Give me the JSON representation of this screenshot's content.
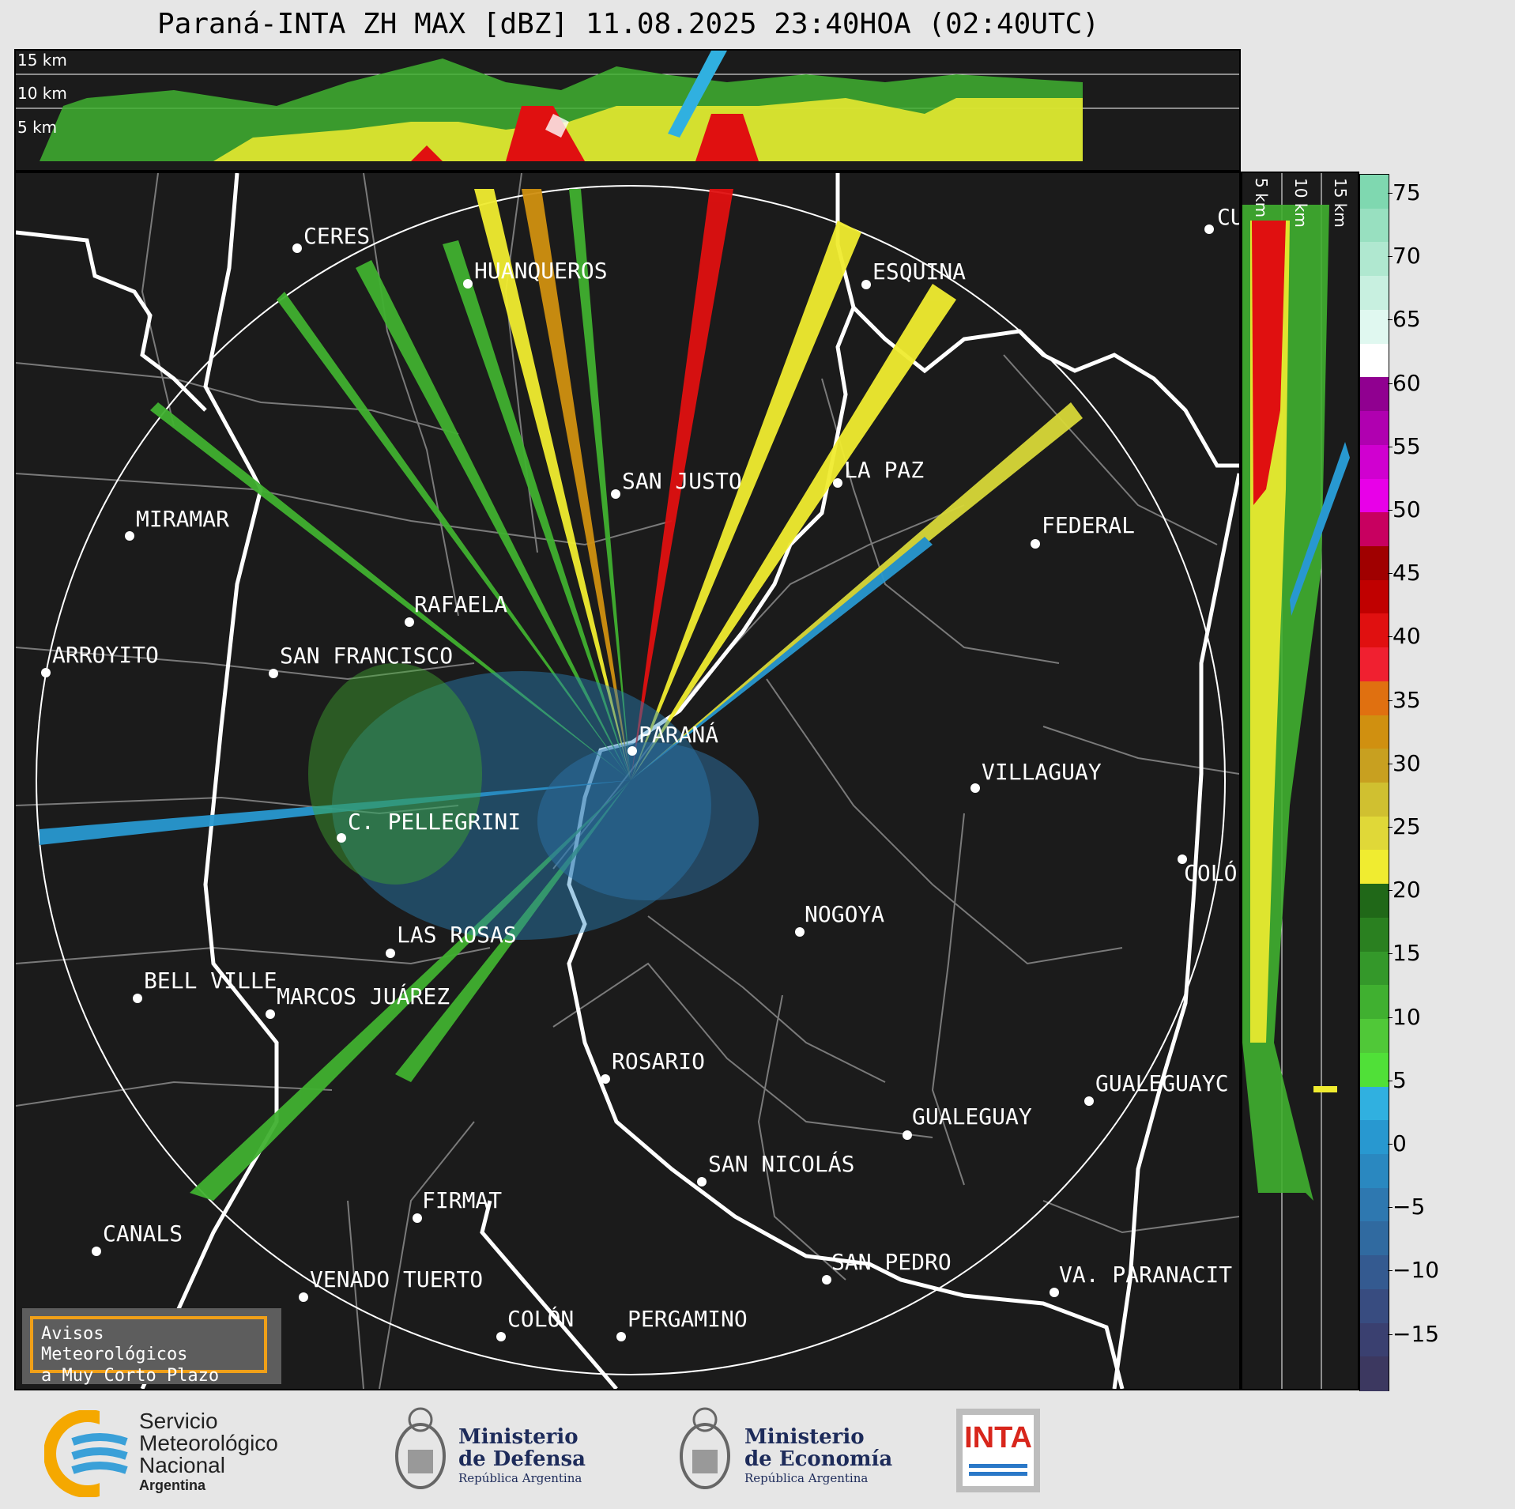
{
  "title": "Paraná-INTA ZH MAX [dBZ] 11.08.2025 23:40HOA (02:40UTC)",
  "top_panel": {
    "height_labels": [
      "15 km",
      "10 km",
      "5 km"
    ]
  },
  "side_panel": {
    "height_labels": [
      "5 km",
      "10 km",
      "15 km"
    ]
  },
  "colorbar": {
    "unit": "dBZ",
    "ticks": [
      "75",
      "70",
      "65",
      "60",
      "55",
      "50",
      "45",
      "40",
      "35",
      "30",
      "25",
      "20",
      "15",
      "10",
      "5",
      "0",
      "−5",
      "−10",
      "−15"
    ],
    "colors": [
      "#7fd8b0",
      "#98e0c0",
      "#b0e8d0",
      "#c8f0e0",
      "#e0f8f0",
      "#ffffff",
      "#900090",
      "#b000b0",
      "#d000d0",
      "#e800e8",
      "#c80060",
      "#a00000",
      "#c00000",
      "#e01010",
      "#f02030",
      "#e07010",
      "#d09010",
      "#c8a020",
      "#d0c030",
      "#e0d838",
      "#f0ec30",
      "#206818",
      "#2a8020",
      "#34982a",
      "#40b030",
      "#50c838",
      "#50e038",
      "#30b0e0",
      "#2898d0",
      "#2a88c0",
      "#2e78b0",
      "#306aa0",
      "#345a90",
      "#384c80",
      "#3a4070",
      "#3c3860"
    ]
  },
  "cities": [
    {
      "name": "CERES"
    },
    {
      "name": "HUANQUEROS"
    },
    {
      "name": "ESQUINA"
    },
    {
      "name": "CU"
    },
    {
      "name": "SAN JUSTO"
    },
    {
      "name": "LA PAZ"
    },
    {
      "name": "MIRAMAR"
    },
    {
      "name": "FEDERAL"
    },
    {
      "name": "RAFAELA"
    },
    {
      "name": "ARROYITO"
    },
    {
      "name": "SAN FRANCISCO"
    },
    {
      "name": "PARANÁ"
    },
    {
      "name": "VILLAGUAY"
    },
    {
      "name": "C. PELLEGRINI"
    },
    {
      "name": "COLÓ"
    },
    {
      "name": "NOGOYA"
    },
    {
      "name": "LAS ROSAS"
    },
    {
      "name": "BELL VILLE"
    },
    {
      "name": "MARCOS JUÁREZ"
    },
    {
      "name": "ROSARIO"
    },
    {
      "name": "GUALEGUAYC"
    },
    {
      "name": "GUALEGUAY"
    },
    {
      "name": "SAN NICOLÁS"
    },
    {
      "name": "FIRMAT"
    },
    {
      "name": "CANALS"
    },
    {
      "name": "SAN PEDRO"
    },
    {
      "name": "VENADO TUERTO"
    },
    {
      "name": "VA. PARANACIT"
    },
    {
      "name": "COLÓN"
    },
    {
      "name": "PERGAMINO"
    }
  ],
  "avisos": {
    "line1": "Avisos Meteorológicos",
    "line2": "a Muy Corto Plazo"
  },
  "footer": {
    "smn": {
      "line1": "Servicio",
      "line2": "Meteorológico",
      "line3": "Nacional",
      "line4": "Argentina"
    },
    "defensa": {
      "line1": "Ministerio",
      "line2": "de Defensa",
      "line3": "República Argentina"
    },
    "economia": {
      "line1": "Ministerio",
      "line2": "de Economía",
      "line3": "República Argentina"
    },
    "inta": "INTA"
  }
}
